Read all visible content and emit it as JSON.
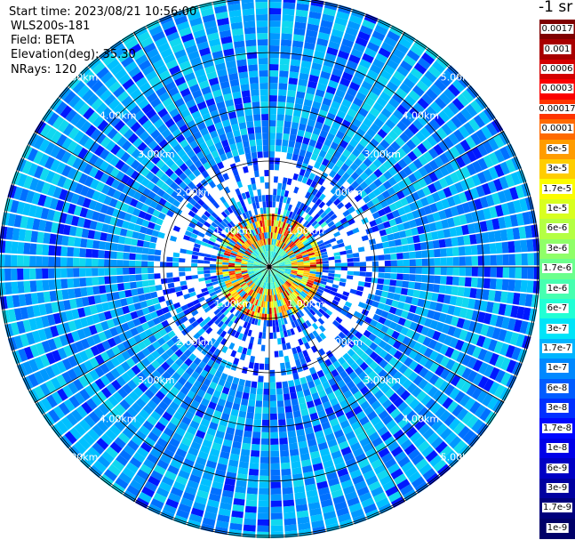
{
  "info": {
    "start_time": "Start time: 2023/08/21 10:56:00",
    "device": "WLS200s-181",
    "field": "Field: BETA",
    "elevation": "Elevation(deg): 35.30",
    "nrays": "NRays: 120"
  },
  "colorbar": {
    "unit": "-1 sr",
    "labels": [
      "0.0017",
      "0.001",
      "0.0006",
      "0.0003",
      "0.00017",
      "0.0001",
      "6e-5",
      "3e-5",
      "1.7e-5",
      "1e-5",
      "6e-6",
      "3e-6",
      "1.7e-6",
      "1e-6",
      "6e-7",
      "3e-7",
      "1.7e-7",
      "1e-7",
      "6e-8",
      "3e-8",
      "1.7e-8",
      "1e-8",
      "6e-9",
      "3e-9",
      "1.7e-9",
      "1e-9"
    ],
    "colors": [
      "#7f0000",
      "#a80000",
      "#d40000",
      "#fb0000",
      "#ff3400",
      "#ff6a00",
      "#ff9c00",
      "#ffcd00",
      "#fbfc00",
      "#d8ff1f",
      "#b4ff43",
      "#8fff68",
      "#6bff8c",
      "#46ffb0",
      "#21ffd5",
      "#00e4f8",
      "#00b4ff",
      "#0088ff",
      "#005cff",
      "#0030ff",
      "#0008ff",
      "#0000e8",
      "#0000c4",
      "#0000a0",
      "#00007c",
      "#000068"
    ]
  },
  "range_labels": [
    "1.00km",
    "2.00km",
    "3.00km",
    "4.00km",
    "5.00km"
  ],
  "plot": {
    "type": "ppi",
    "rays": 120,
    "max_range_km": 5.0,
    "center_color": "#000000",
    "ring_color": "#000000"
  }
}
